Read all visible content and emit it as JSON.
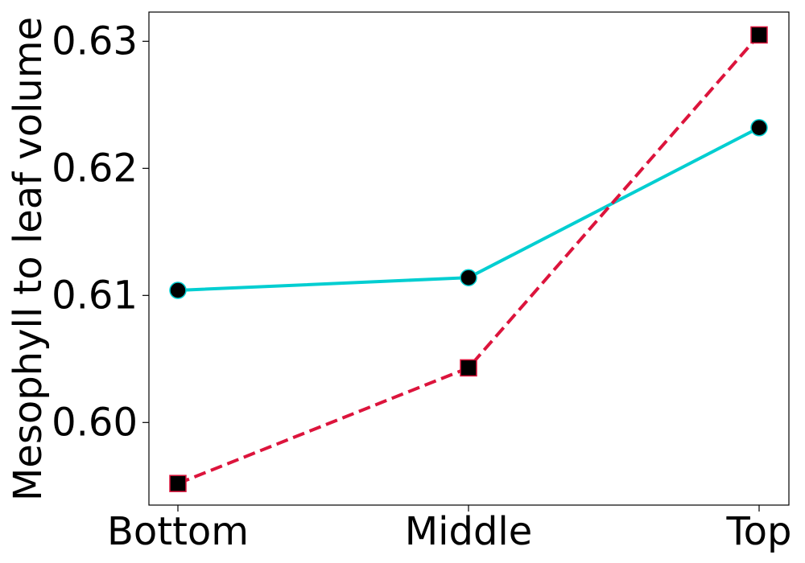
{
  "chart_data": {
    "type": "line",
    "title": "",
    "xlabel": "",
    "ylabel": "Mesophyll to leaf volume",
    "categories": [
      "Bottom",
      "Middle",
      "Top"
    ],
    "ylim": [
      0.5935,
      0.6323
    ],
    "yticks": [
      0.6,
      0.61,
      0.62,
      0.63
    ],
    "ytick_labels": [
      "0.60",
      "0.61",
      "0.62",
      "0.63"
    ],
    "grid": false,
    "legend": "none",
    "series": [
      {
        "values": [
          0.6104,
          0.6114,
          0.6232
        ],
        "color": "#00CED1",
        "line_style": "solid",
        "marker": "circle",
        "marker_fill": "#000000"
      },
      {
        "values": [
          0.5952,
          0.6043,
          0.6305
        ],
        "color": "#DC143C",
        "line_style": "dashed",
        "marker": "square",
        "marker_fill": "#000000"
      }
    ]
  }
}
